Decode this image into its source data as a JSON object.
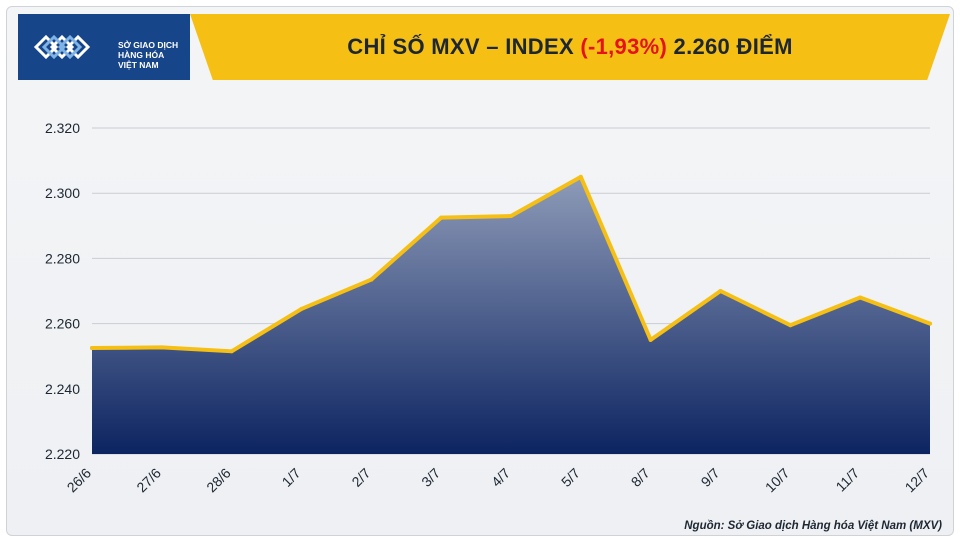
{
  "header": {
    "logo_text": [
      "SỞ GIAO DỊCH",
      "HÀNG HÓA",
      "VIỆT NAM"
    ],
    "title_prefix": "CHỈ SỐ MXV – INDEX ",
    "title_change": "(-1,93%)",
    "title_suffix": " 2.260 ĐIỂM",
    "banner_color": "#f5bf14",
    "negative_color": "#e5121b"
  },
  "source": "Nguồn: Sở Giao dịch Hàng hóa Việt Nam (MXV)",
  "chart_data": {
    "type": "area",
    "title": "CHỈ SỐ MXV – INDEX (-1,93%) 2.260 ĐIỂM",
    "xlabel": "",
    "ylabel": "",
    "categories": [
      "26/6",
      "27/6",
      "28/6",
      "1/7",
      "2/7",
      "3/7",
      "4/7",
      "5/7",
      "8/7",
      "9/7",
      "10/7",
      "11/7",
      "12/7"
    ],
    "series": [
      {
        "values": [
          2252.5,
          2252.7,
          2251.5,
          2264.5,
          2273.5,
          2292.5,
          2293,
          2305,
          2255,
          2270,
          2259.5,
          2268,
          2260
        ]
      }
    ],
    "ylim": [
      2220,
      2320
    ],
    "yticks": [
      2220,
      2240,
      2260,
      2280,
      2300,
      2320
    ],
    "ytick_labels": [
      "2.220",
      "2.240",
      "2.260",
      "2.280",
      "2.300",
      "2.320"
    ],
    "line_color": "#f5bf14",
    "fill_top_color": "#8e9bb8",
    "fill_bottom_color": "#0c2461",
    "grid": true,
    "legend": "none"
  }
}
